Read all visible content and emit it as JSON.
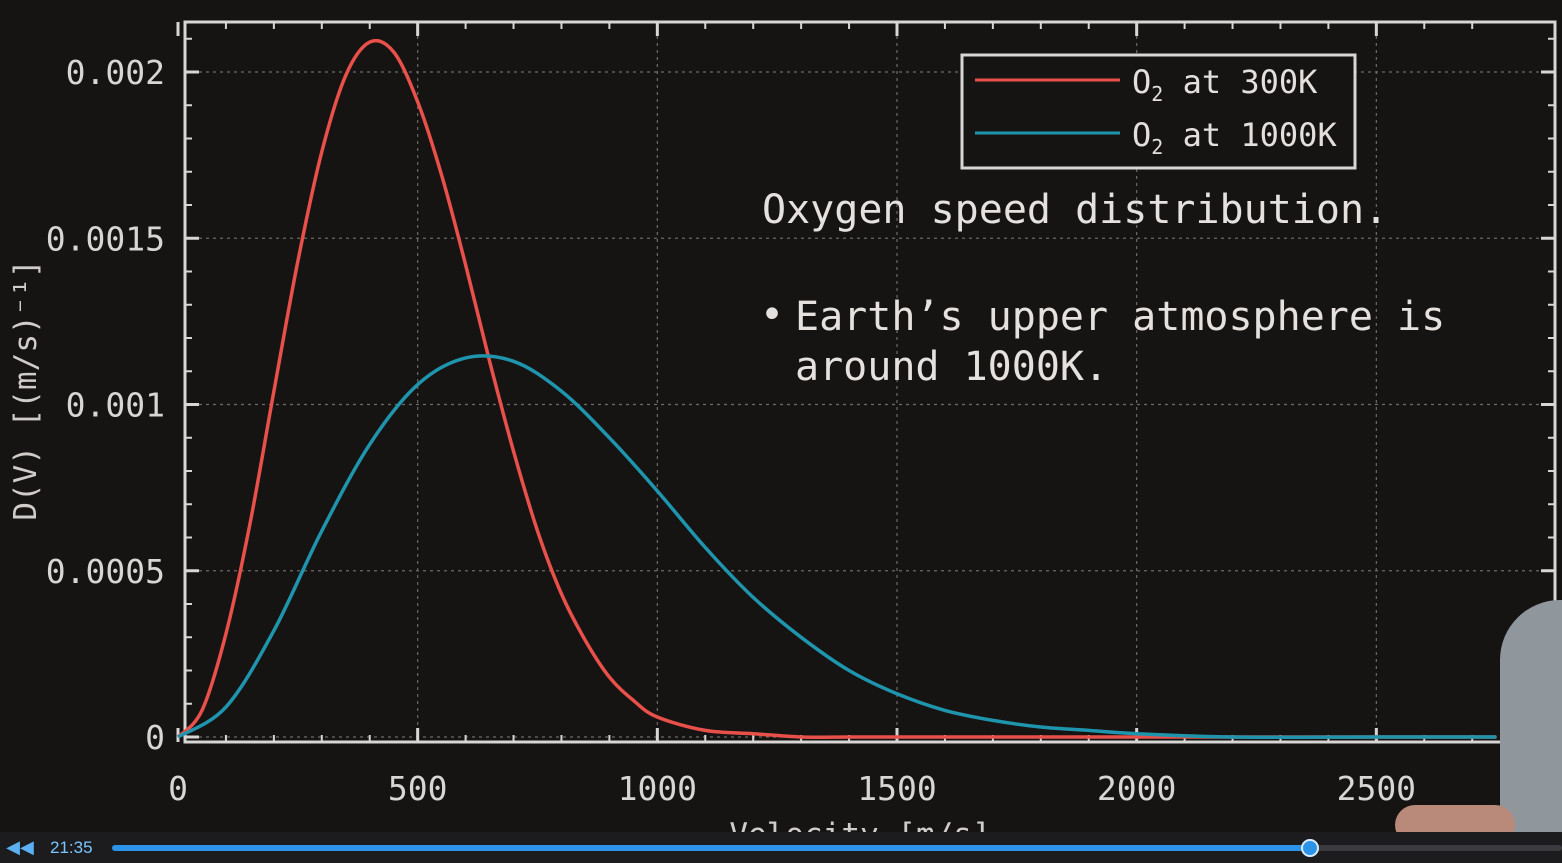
{
  "chart_data": {
    "type": "line",
    "title": "",
    "xlabel": "Velocity [m/s]",
    "ylabel": "D(V) [(m/s)⁻¹]",
    "xlim": [
      0,
      2750
    ],
    "ylim": [
      0,
      0.0022
    ],
    "x_ticks": [
      "0",
      "500",
      "1000",
      "1500",
      "2000",
      "2500"
    ],
    "x_tick_values": [
      0,
      500,
      1000,
      1500,
      2000,
      2500
    ],
    "y_ticks": [
      "0",
      "0.0005",
      "0.001",
      "0.0015",
      "0.002"
    ],
    "y_tick_values": [
      0,
      0.0005,
      0.001,
      0.0015,
      0.002
    ],
    "grid": true,
    "legend_position": "top-right",
    "series": [
      {
        "name": "O₂ at 300K",
        "color": "#e8504a",
        "x": [
          0,
          50,
          100,
          150,
          200,
          250,
          300,
          350,
          400,
          450,
          500,
          550,
          600,
          650,
          700,
          750,
          800,
          850,
          900,
          950,
          1000,
          1100,
          1200,
          1300,
          1400,
          1500,
          1700,
          2000,
          2500,
          2750
        ],
        "y": [
          0,
          8e-05,
          0.00031,
          0.00064,
          0.00104,
          0.00143,
          0.00176,
          0.00199,
          0.00209,
          0.00206,
          0.00191,
          0.00169,
          0.00142,
          0.00113,
          0.00086,
          0.00062,
          0.00043,
          0.00029,
          0.00018,
          0.00011,
          6e-05,
          2e-05,
          1e-05,
          0,
          0,
          0,
          0,
          0,
          0,
          0
        ]
      },
      {
        "name": "O₂ at 1000K",
        "color": "#1f95ad",
        "x": [
          0,
          100,
          200,
          300,
          400,
          500,
          600,
          700,
          800,
          900,
          1000,
          1100,
          1200,
          1300,
          1400,
          1500,
          1600,
          1700,
          1800,
          1900,
          2000,
          2200,
          2500,
          2750
        ],
        "y": [
          0,
          9e-05,
          0.00032,
          0.00062,
          0.00088,
          0.00106,
          0.00114,
          0.00113,
          0.00104,
          0.0009,
          0.00074,
          0.00057,
          0.00042,
          0.0003,
          0.0002,
          0.00013,
          8e-05,
          5e-05,
          3e-05,
          2e-05,
          1e-05,
          0,
          0,
          0
        ]
      }
    ]
  },
  "legend": {
    "items": [
      {
        "label_main": "O",
        "label_sub": "2",
        "label_rest": " at 300K"
      },
      {
        "label_main": "O",
        "label_sub": "2",
        "label_rest": " at 1000K"
      }
    ]
  },
  "annotation": {
    "title": "Oxygen speed distribution.",
    "bullet": "•",
    "line1": "Earth’s upper atmosphere is",
    "line2": "around 1000K."
  },
  "video_player": {
    "timecode": "21:35",
    "progress": 0.826,
    "accent": "#2b93e8"
  }
}
